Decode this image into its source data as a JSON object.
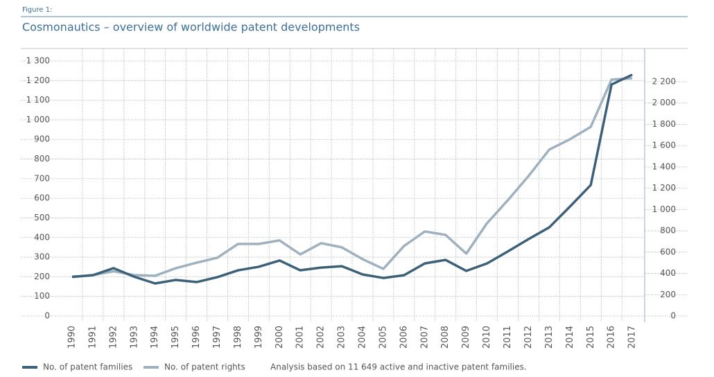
{
  "chart_data": {
    "type": "line",
    "figure_label": "Figure 1:",
    "title": "Cosmonautics – overview of worldwide patent developments",
    "note": "Analysis based on 11 649 active and inactive patent families.",
    "categories": [
      "1990",
      "1991",
      "1992",
      "1993",
      "1994",
      "1995",
      "1996",
      "1997",
      "1998",
      "1999",
      "2000",
      "2001",
      "2002",
      "2003",
      "2004",
      "2005",
      "2006",
      "2007",
      "2008",
      "2009",
      "2010",
      "2011",
      "2012",
      "2013",
      "2014",
      "2015",
      "2016",
      "2017"
    ],
    "series": [
      {
        "name": "No. of patent families",
        "color": "#3c6078",
        "values": [
          200,
          208,
          244,
          200,
          166,
          184,
          173,
          198,
          233,
          251,
          283,
          233,
          247,
          254,
          212,
          194,
          208,
          268,
          286,
          230,
          268,
          329,
          392,
          452,
          558,
          668,
          1180,
          1230
        ]
      },
      {
        "name": "No. of patent rights",
        "color": "#9fb1bf",
        "axis": "y2",
        "values": [
          365,
          385,
          420,
          384,
          378,
          449,
          501,
          547,
          677,
          677,
          710,
          579,
          684,
          645,
          534,
          443,
          658,
          794,
          762,
          586,
          872,
          1087,
          1315,
          1563,
          1660,
          1777,
          2220,
          2233
        ]
      }
    ],
    "ylim": [
      0,
      1300
    ],
    "yticks": [
      0,
      100,
      200,
      300,
      400,
      500,
      600,
      700,
      800,
      900,
      {
        "value": 1000,
        "label": "1 000"
      },
      {
        "value": 1100,
        "label": "1 100"
      },
      {
        "value": 1200,
        "label": "1 200"
      },
      {
        "value": 1300,
        "label": "1 300"
      }
    ],
    "y2lim": [
      0,
      2395
    ],
    "y2ticks": [
      0,
      200,
      400,
      600,
      800,
      {
        "value": 1000,
        "label": "1 000"
      },
      {
        "value": 1200,
        "label": "1 200"
      },
      {
        "value": 1400,
        "label": "1 400"
      },
      {
        "value": 1600,
        "label": "1 600"
      },
      {
        "value": 1800,
        "label": "1 800"
      },
      {
        "value": 2000,
        "label": "2 000"
      },
      {
        "value": 2200,
        "label": "2 200"
      }
    ],
    "grid": true
  }
}
